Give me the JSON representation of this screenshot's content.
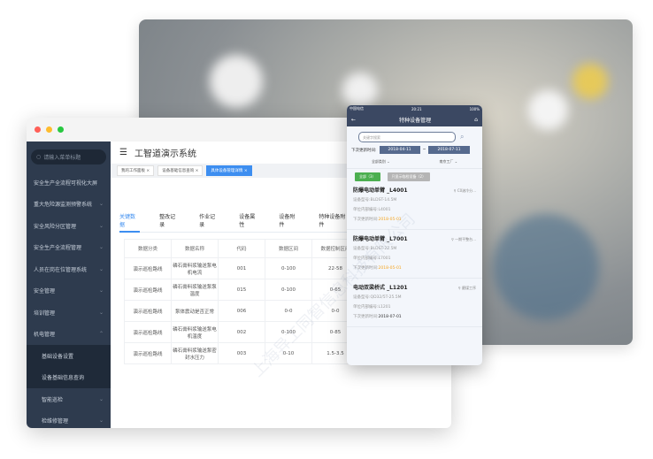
{
  "watermark": "上海异工同智信息科技有限公司",
  "desktop": {
    "title": "工智道演示系统",
    "search_placeholder": "请输入菜单标题",
    "menu": [
      {
        "label": "安全生产全流程可视化大屏",
        "chevron": false
      },
      {
        "label": "重大危险源监测预警系统",
        "chevron": true
      },
      {
        "label": "安全风险分区管理",
        "chevron": true
      },
      {
        "label": "安全生产全流程管理",
        "chevron": true
      },
      {
        "label": "人员在岗在位管理系统",
        "chevron": true
      },
      {
        "label": "安全管理",
        "chevron": true
      },
      {
        "label": "培训管理",
        "chevron": true
      },
      {
        "label": "机电管理",
        "chevron": true
      }
    ],
    "submenu": [
      "基础设备设置",
      "设备基础信息查询"
    ],
    "submenu2": [
      "智能巡检",
      "检维修管理"
    ],
    "tags": [
      "我的工作面板",
      "设备基础信息查询",
      "具体设备管理详情"
    ],
    "tabs": [
      "关键数据",
      "整改记录",
      "作业记录",
      "设备属性",
      "设备附件",
      "特种设备附件"
    ],
    "table": {
      "headers": [
        "数据分类",
        "数据名称",
        "代码",
        "数据区间",
        "数据控制区间"
      ],
      "rows": [
        [
          "演示巡检路线",
          "磷石膏料浆输送泵电机电流",
          "001",
          "0-100",
          "22-58"
        ],
        [
          "演示巡检路线",
          "磷石膏料浆输送泵泵温度",
          "015",
          "0-100",
          "0-65"
        ],
        [
          "演示巡检路线",
          "泵体震动是否正常",
          "006",
          "0-0",
          "0-0"
        ],
        [
          "演示巡检路线",
          "磷石膏料浆输送泵电机温度",
          "002",
          "0-100",
          "0-85"
        ],
        [
          "演示巡检路线",
          "磷石膏料浆输送泵密封水压力",
          "003",
          "0-10",
          "1.5-3.5"
        ]
      ]
    }
  },
  "phone": {
    "carrier": "中国电信",
    "time": "20:21",
    "battery": "100%",
    "title": "特种设备管理",
    "search_placeholder": "关键字搜索",
    "date_label": "下次更新时间:",
    "date_from": "2018-04-11",
    "date_sep": "~",
    "date_to": "2018-07-11",
    "filter_type": "全部类别",
    "filter_factory": "南京工厂",
    "btn_all": "全部（3）",
    "btn_near": "只显示临检设备（2）",
    "colors": {
      "nav": "#3b4862",
      "green": "#4caf50",
      "orange": "#f5a623",
      "accent": "#3d8ef0"
    },
    "items": [
      {
        "name": "防爆电动单臂 _L4001",
        "loc": "C0溶冷分...",
        "model_label": "设备型号:",
        "model": "BLDST-14.5M",
        "code_label": "单位内部编号:",
        "code": "L4001",
        "date_label": "下次更新时间:",
        "date": "2018-05-01",
        "warn": true
      },
      {
        "name": "防爆电动单臂 _L7001",
        "loc": "一期平整台...",
        "model_label": "设备型号:",
        "model": "BLDST-22.5M",
        "code_label": "单位内部编号:",
        "code": "L7001",
        "date_label": "下次更新时间:",
        "date": "2018-05-01",
        "warn": true
      },
      {
        "name": "电动双梁桥式 _L1201",
        "loc": "磨煤工序",
        "model_label": "设备型号:",
        "model": "QD32/5T-25.5M",
        "code_label": "单位内部编号:",
        "code": "L1201",
        "date_label": "下次更新时间:",
        "date": "2018-07-01",
        "warn": false
      }
    ]
  }
}
